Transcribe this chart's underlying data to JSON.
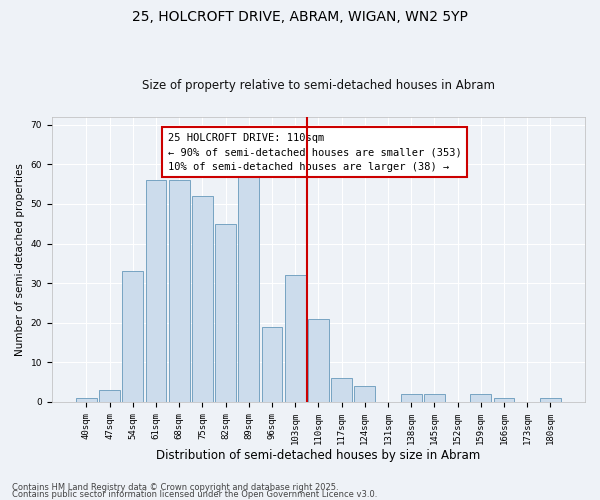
{
  "title1": "25, HOLCROFT DRIVE, ABRAM, WIGAN, WN2 5YP",
  "title2": "Size of property relative to semi-detached houses in Abram",
  "xlabel": "Distribution of semi-detached houses by size in Abram",
  "ylabel": "Number of semi-detached properties",
  "categories": [
    "40sqm",
    "47sqm",
    "54sqm",
    "61sqm",
    "68sqm",
    "75sqm",
    "82sqm",
    "89sqm",
    "96sqm",
    "103sqm",
    "110sqm",
    "117sqm",
    "124sqm",
    "131sqm",
    "138sqm",
    "145sqm",
    "152sqm",
    "159sqm",
    "166sqm",
    "173sqm",
    "180sqm"
  ],
  "values": [
    1,
    3,
    33,
    56,
    56,
    52,
    45,
    57,
    19,
    32,
    21,
    6,
    4,
    0,
    2,
    2,
    0,
    2,
    1,
    0,
    1
  ],
  "bar_color": "#ccdcec",
  "bar_edge_color": "#6699bb",
  "highlight_line_index": 10,
  "annotation_text": "25 HOLCROFT DRIVE: 110sqm\n← 90% of semi-detached houses are smaller (353)\n10% of semi-detached houses are larger (38) →",
  "annotation_box_color": "#ffffff",
  "annotation_box_edge_color": "#cc0000",
  "line_color": "#cc0000",
  "footer1": "Contains HM Land Registry data © Crown copyright and database right 2025.",
  "footer2": "Contains public sector information licensed under the Open Government Licence v3.0.",
  "ylim": [
    0,
    72
  ],
  "yticks": [
    0,
    10,
    20,
    30,
    40,
    50,
    60,
    70
  ],
  "background_color": "#eef2f7",
  "grid_color": "#ffffff",
  "title1_fontsize": 10,
  "title2_fontsize": 8.5,
  "xlabel_fontsize": 8.5,
  "ylabel_fontsize": 7.5,
  "tick_fontsize": 6.5,
  "annotation_fontsize": 7.5,
  "footer_fontsize": 6
}
